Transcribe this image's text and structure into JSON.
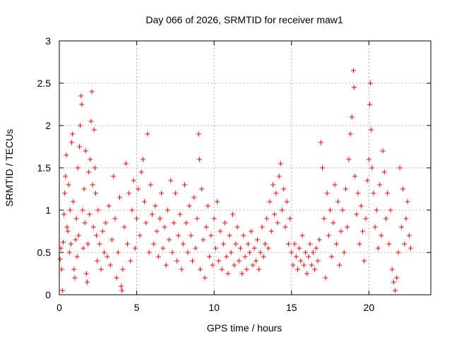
{
  "chart_data": {
    "type": "scatter",
    "title": "Day 066 of 2026, SRMTID for receiver maw1",
    "xlabel": "GPS time / hours",
    "ylabel": "SRMTID / TECUs",
    "xlim": [
      0,
      24
    ],
    "ylim": [
      0,
      3
    ],
    "xticks": [
      "0",
      "5",
      "10",
      "15",
      "20"
    ],
    "yticks": [
      "0",
      "0.5",
      "1",
      "1.5",
      "2",
      "2.5",
      "3"
    ],
    "grid": true,
    "marker": "+",
    "marker_color": "#ff0000",
    "series": [
      {
        "name": "SRMTID",
        "points": [
          [
            0.05,
            0.42
          ],
          [
            0.1,
            0.55
          ],
          [
            0.15,
            0.3
          ],
          [
            0.2,
            0.05
          ],
          [
            0.25,
            0.62
          ],
          [
            0.3,
            0.95
          ],
          [
            0.35,
            1.2
          ],
          [
            0.4,
            1.4
          ],
          [
            0.45,
            1.65
          ],
          [
            0.5,
            0.8
          ],
          [
            0.55,
            0.75
          ],
          [
            0.6,
            1.3
          ],
          [
            0.65,
            0.5
          ],
          [
            0.7,
            1.0
          ],
          [
            0.75,
            0.6
          ],
          [
            0.8,
            1.8
          ],
          [
            0.85,
            1.9
          ],
          [
            0.9,
            1.1
          ],
          [
            0.95,
            0.3
          ],
          [
            1.0,
            0.2
          ],
          [
            1.05,
            0.65
          ],
          [
            1.1,
            0.9
          ],
          [
            1.15,
            0.45
          ],
          [
            1.2,
            1.5
          ],
          [
            1.25,
            0.7
          ],
          [
            1.3,
            1.75
          ],
          [
            1.35,
            2.0
          ],
          [
            1.4,
            2.35
          ],
          [
            1.45,
            2.25
          ],
          [
            1.5,
            1.0
          ],
          [
            1.55,
            0.55
          ],
          [
            1.6,
            1.25
          ],
          [
            1.65,
            0.85
          ],
          [
            1.7,
            1.7
          ],
          [
            1.75,
            0.25
          ],
          [
            1.8,
            0.15
          ],
          [
            1.85,
            0.6
          ],
          [
            1.9,
            1.45
          ],
          [
            1.95,
            0.95
          ],
          [
            2.0,
            1.6
          ],
          [
            2.05,
            2.05
          ],
          [
            2.1,
            2.4
          ],
          [
            2.15,
            1.3
          ],
          [
            2.2,
            0.8
          ],
          [
            2.25,
            1.95
          ],
          [
            2.3,
            1.5
          ],
          [
            2.35,
            1.2
          ],
          [
            2.4,
            0.7
          ],
          [
            2.45,
            0.4
          ],
          [
            2.5,
            1.0
          ],
          [
            2.6,
            0.6
          ],
          [
            2.7,
            0.3
          ],
          [
            2.8,
            0.75
          ],
          [
            2.9,
            0.5
          ],
          [
            3.0,
            0.85
          ],
          [
            3.1,
            0.45
          ],
          [
            3.2,
            1.05
          ],
          [
            3.3,
            0.35
          ],
          [
            3.4,
            0.65
          ],
          [
            3.5,
            1.4
          ],
          [
            3.6,
            0.9
          ],
          [
            3.7,
            0.2
          ],
          [
            3.8,
            0.5
          ],
          [
            3.9,
            1.15
          ],
          [
            4.0,
            0.1
          ],
          [
            4.05,
            0.05
          ],
          [
            4.1,
            0.3
          ],
          [
            4.2,
            0.8
          ],
          [
            4.3,
            1.55
          ],
          [
            4.4,
            0.6
          ],
          [
            4.5,
            1.2
          ],
          [
            4.6,
            0.4
          ],
          [
            4.7,
            1.0
          ],
          [
            4.8,
            1.35
          ],
          [
            4.9,
            0.55
          ],
          [
            5.0,
            0.9
          ],
          [
            5.1,
            1.25
          ],
          [
            5.2,
            0.7
          ],
          [
            5.3,
            1.45
          ],
          [
            5.4,
            1.6
          ],
          [
            5.5,
            1.1
          ],
          [
            5.6,
            0.85
          ],
          [
            5.7,
            1.9
          ],
          [
            5.8,
            0.5
          ],
          [
            5.9,
            1.3
          ],
          [
            6.0,
            0.95
          ],
          [
            6.1,
            0.6
          ],
          [
            6.2,
            1.05
          ],
          [
            6.3,
            0.75
          ],
          [
            6.4,
            0.45
          ],
          [
            6.5,
            0.9
          ],
          [
            6.6,
            1.2
          ],
          [
            6.7,
            0.55
          ],
          [
            6.8,
            0.8
          ],
          [
            6.9,
            0.35
          ],
          [
            7.0,
            1.0
          ],
          [
            7.1,
            0.65
          ],
          [
            7.2,
            1.35
          ],
          [
            7.3,
            0.5
          ],
          [
            7.4,
            0.85
          ],
          [
            7.5,
            1.2
          ],
          [
            7.6,
            0.4
          ],
          [
            7.7,
            0.7
          ],
          [
            7.8,
            0.95
          ],
          [
            7.9,
            0.3
          ],
          [
            8.0,
            0.6
          ],
          [
            8.1,
            1.3
          ],
          [
            8.2,
            0.85
          ],
          [
            8.3,
            0.5
          ],
          [
            8.4,
            1.05
          ],
          [
            8.5,
            0.7
          ],
          [
            8.6,
            0.4
          ],
          [
            8.7,
            1.15
          ],
          [
            8.8,
            0.55
          ],
          [
            8.9,
            0.9
          ],
          [
            9.0,
            1.9
          ],
          [
            9.05,
            1.6
          ],
          [
            9.1,
            0.3
          ],
          [
            9.2,
            1.25
          ],
          [
            9.3,
            0.65
          ],
          [
            9.4,
            0.2
          ],
          [
            9.5,
            0.8
          ],
          [
            9.6,
            1.05
          ],
          [
            9.7,
            0.45
          ],
          [
            9.8,
            0.7
          ],
          [
            9.9,
            0.35
          ],
          [
            10.0,
            0.9
          ],
          [
            10.1,
            0.55
          ],
          [
            10.2,
            1.1
          ],
          [
            10.3,
            0.4
          ],
          [
            10.4,
            0.75
          ],
          [
            10.5,
            0.3
          ],
          [
            10.6,
            0.6
          ],
          [
            10.7,
            0.85
          ],
          [
            10.8,
            0.45
          ],
          [
            10.9,
            0.25
          ],
          [
            11.0,
            0.7
          ],
          [
            11.1,
            0.5
          ],
          [
            11.2,
            0.95
          ],
          [
            11.3,
            0.35
          ],
          [
            11.4,
            0.6
          ],
          [
            11.5,
            0.8
          ],
          [
            11.6,
            0.4
          ],
          [
            11.7,
            0.55
          ],
          [
            11.8,
            0.25
          ],
          [
            11.9,
            0.7
          ],
          [
            12.0,
            0.45
          ],
          [
            12.1,
            0.3
          ],
          [
            12.2,
            0.6
          ],
          [
            12.3,
            0.5
          ],
          [
            12.4,
            0.75
          ],
          [
            12.5,
            0.35
          ],
          [
            12.6,
            0.55
          ],
          [
            12.7,
            0.4
          ],
          [
            12.8,
            0.65
          ],
          [
            12.9,
            0.3
          ],
          [
            13.0,
            0.5
          ],
          [
            13.1,
            0.8
          ],
          [
            13.2,
            0.45
          ],
          [
            13.3,
            0.6
          ],
          [
            13.4,
            0.9
          ],
          [
            13.5,
            0.55
          ],
          [
            13.6,
            1.1
          ],
          [
            13.7,
            0.75
          ],
          [
            13.8,
            1.3
          ],
          [
            13.9,
            0.95
          ],
          [
            14.0,
            1.2
          ],
          [
            14.1,
            0.85
          ],
          [
            14.2,
            1.4
          ],
          [
            14.3,
            1.55
          ],
          [
            14.4,
            1.0
          ],
          [
            14.5,
            1.25
          ],
          [
            14.6,
            0.8
          ],
          [
            14.7,
            1.1
          ],
          [
            14.8,
            0.6
          ],
          [
            14.9,
            0.9
          ],
          [
            15.0,
            0.5
          ],
          [
            15.1,
            0.35
          ],
          [
            15.2,
            0.6
          ],
          [
            15.3,
            0.45
          ],
          [
            15.4,
            0.3
          ],
          [
            15.5,
            0.55
          ],
          [
            15.6,
            0.4
          ],
          [
            15.7,
            0.7
          ],
          [
            15.8,
            0.35
          ],
          [
            15.9,
            0.5
          ],
          [
            16.0,
            0.25
          ],
          [
            16.1,
            0.45
          ],
          [
            16.2,
            0.6
          ],
          [
            16.3,
            0.35
          ],
          [
            16.4,
            0.5
          ],
          [
            16.5,
            0.3
          ],
          [
            16.6,
            0.55
          ],
          [
            16.7,
            0.4
          ],
          [
            16.8,
            0.65
          ],
          [
            16.9,
            1.8
          ],
          [
            17.0,
            1.5
          ],
          [
            17.1,
            0.9
          ],
          [
            17.2,
            0.2
          ],
          [
            17.3,
            1.2
          ],
          [
            17.4,
            0.7
          ],
          [
            17.5,
            1.0
          ],
          [
            17.6,
            0.45
          ],
          [
            17.7,
            0.85
          ],
          [
            17.8,
            1.3
          ],
          [
            17.9,
            0.6
          ],
          [
            18.0,
            1.1
          ],
          [
            18.1,
            0.35
          ],
          [
            18.2,
            0.75
          ],
          [
            18.3,
            1.0
          ],
          [
            18.4,
            0.5
          ],
          [
            18.5,
            1.25
          ],
          [
            18.6,
            0.8
          ],
          [
            18.7,
            1.6
          ],
          [
            18.8,
            1.9
          ],
          [
            18.9,
            2.1
          ],
          [
            19.0,
            2.65
          ],
          [
            19.05,
            2.45
          ],
          [
            19.1,
            1.4
          ],
          [
            19.2,
            0.95
          ],
          [
            19.3,
            1.2
          ],
          [
            19.4,
            0.6
          ],
          [
            19.5,
            1.05
          ],
          [
            19.6,
            0.75
          ],
          [
            19.7,
            0.4
          ],
          [
            19.8,
            0.9
          ],
          [
            19.9,
            1.35
          ],
          [
            20.0,
            1.6
          ],
          [
            20.05,
            2.25
          ],
          [
            20.1,
            2.5
          ],
          [
            20.15,
            1.95
          ],
          [
            20.2,
            1.5
          ],
          [
            20.3,
            1.2
          ],
          [
            20.4,
            0.8
          ],
          [
            20.5,
            1.0
          ],
          [
            20.6,
            0.55
          ],
          [
            20.7,
            1.3
          ],
          [
            20.8,
            0.7
          ],
          [
            20.9,
            1.7
          ],
          [
            21.0,
            1.45
          ],
          [
            21.1,
            0.9
          ],
          [
            21.2,
            1.2
          ],
          [
            21.3,
            0.6
          ],
          [
            21.4,
            1.0
          ],
          [
            21.5,
            0.3
          ],
          [
            21.6,
            0.15
          ],
          [
            21.7,
            0.05
          ],
          [
            21.8,
            0.2
          ],
          [
            21.9,
            0.5
          ],
          [
            22.0,
            1.5
          ],
          [
            22.1,
            0.8
          ],
          [
            22.2,
            1.25
          ],
          [
            22.3,
            0.6
          ],
          [
            22.4,
            0.9
          ],
          [
            22.5,
            1.1
          ],
          [
            22.6,
            0.7
          ],
          [
            22.7,
            0.55
          ]
        ]
      }
    ]
  }
}
